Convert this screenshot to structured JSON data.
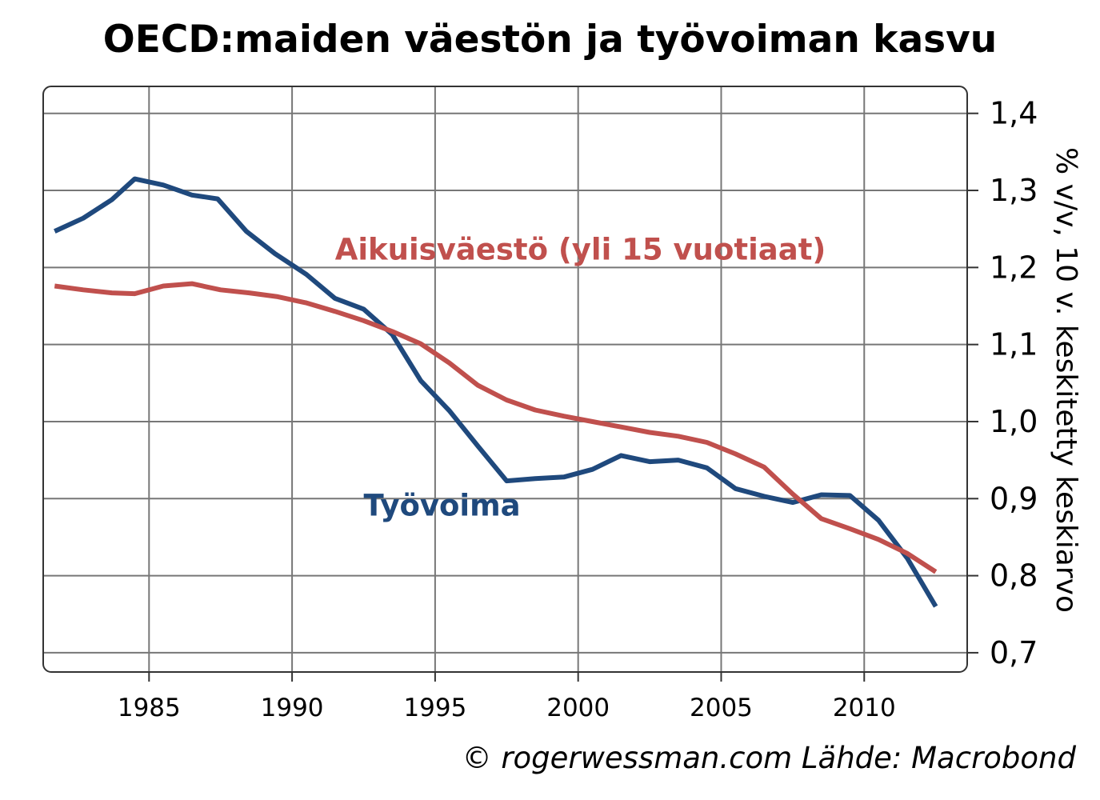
{
  "chart_data": {
    "type": "line",
    "title": "OECD:maiden väestön ja työvoiman kasvu",
    "xlabel": "",
    "ylabel": "% v/v, 10 v. keskitetty keskiarvo",
    "xlim": [
      1981.3,
      2013.6
    ],
    "ylim": [
      0.675,
      1.435
    ],
    "x_ticks": [
      1985,
      1990,
      1995,
      2000,
      2005,
      2010
    ],
    "y_ticks": [
      {
        "value": 0.7,
        "label": "0,7"
      },
      {
        "value": 0.8,
        "label": "0,8"
      },
      {
        "value": 0.9,
        "label": "0,9"
      },
      {
        "value": 1.0,
        "label": "1,0"
      },
      {
        "value": 1.1,
        "label": "1,1"
      },
      {
        "value": 1.2,
        "label": "1,2"
      },
      {
        "value": 1.3,
        "label": "1,3"
      },
      {
        "value": 1.4,
        "label": "1,4"
      }
    ],
    "y_axis_side": "right",
    "grid": true,
    "series": [
      {
        "name": "Työvoima",
        "color": "#1f497d",
        "x": [
          1981.7,
          1982.7,
          1983.7,
          1984.5,
          1985.5,
          1986.5,
          1987.4,
          1988.4,
          1989.4,
          1990.5,
          1991.5,
          1992.5,
          1993.5,
          1994.5,
          1995.5,
          1996.5,
          1997.5,
          1998.5,
          1999.5,
          2000.5,
          2001.5,
          2002.5,
          2003.5,
          2004.5,
          2005.5,
          2006.5,
          2007.5,
          2008.5,
          2009.5,
          2010.5,
          2011.5,
          2012.5
        ],
        "values": [
          1.247,
          1.264,
          1.288,
          1.315,
          1.307,
          1.294,
          1.289,
          1.247,
          1.218,
          1.191,
          1.16,
          1.146,
          1.113,
          1.053,
          1.014,
          0.968,
          0.923,
          0.926,
          0.928,
          0.938,
          0.956,
          0.948,
          0.95,
          0.94,
          0.913,
          0.903,
          0.895,
          0.905,
          0.904,
          0.872,
          0.823,
          0.76
        ]
      },
      {
        "name": "Aikuisväestö (yli 15 vuotiaat)",
        "color": "#c0504d",
        "x": [
          1981.7,
          1982.7,
          1983.7,
          1984.5,
          1985.5,
          1986.5,
          1987.5,
          1988.5,
          1989.5,
          1990.5,
          1991.5,
          1992.5,
          1993.5,
          1994.5,
          1995.5,
          1996.5,
          1997.5,
          1998.5,
          1999.5,
          2000.5,
          2001.5,
          2002.5,
          2003.5,
          2004.5,
          2005.5,
          2006.5,
          2007.5,
          2008.5,
          2009.5,
          2010.5,
          2011.5,
          2012.5
        ],
        "values": [
          1.176,
          1.171,
          1.167,
          1.166,
          1.176,
          1.179,
          1.171,
          1.167,
          1.162,
          1.154,
          1.143,
          1.131,
          1.117,
          1.101,
          1.076,
          1.047,
          1.028,
          1.015,
          1.007,
          1.0,
          0.993,
          0.986,
          0.981,
          0.973,
          0.958,
          0.941,
          0.906,
          0.874,
          0.861,
          0.847,
          0.829,
          0.805
        ]
      }
    ],
    "annotations": [
      {
        "series": "Aikuisväestö (yli 15 vuotiaat)",
        "text": "Aikuisväestö (yli 15 vuotiaat)",
        "at": {
          "x": 1991.5,
          "y": 1.21
        }
      },
      {
        "series": "Työvoima",
        "text": "Työvoima",
        "at": {
          "x": 1992.5,
          "y": 0.878
        }
      }
    ],
    "source_note": "© rogerwessman.com Lähde: Macrobond"
  }
}
